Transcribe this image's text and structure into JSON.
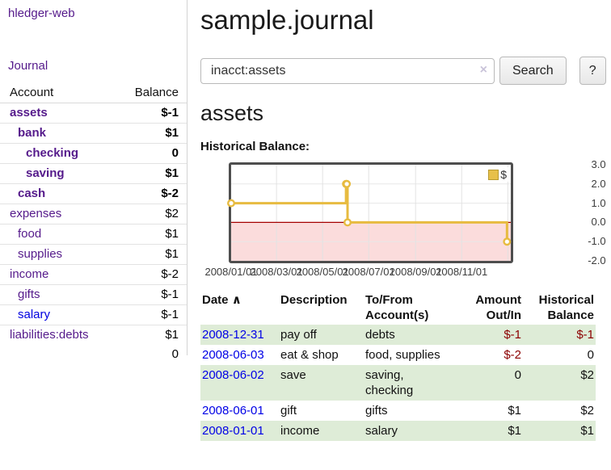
{
  "sidebar": {
    "brand": "hledger-web",
    "journal_link": "Journal",
    "accounts_table": {
      "headers": [
        "Account",
        "Balance"
      ],
      "rows": [
        {
          "name": "assets",
          "balance": "$-1",
          "level": 1,
          "bold": true,
          "balance_class": "neg",
          "link_class": ""
        },
        {
          "name": "bank",
          "balance": "$1",
          "level": 2,
          "bold": true,
          "balance_class": "",
          "link_class": ""
        },
        {
          "name": "checking",
          "balance": "0",
          "level": 3,
          "bold": true,
          "balance_class": "",
          "link_class": ""
        },
        {
          "name": "saving",
          "balance": "$1",
          "level": 3,
          "bold": true,
          "balance_class": "",
          "link_class": ""
        },
        {
          "name": "cash",
          "balance": "$-2",
          "level": 2,
          "bold": true,
          "balance_class": "neg",
          "link_class": ""
        },
        {
          "name": "expenses",
          "balance": "$2",
          "level": 1,
          "bold": false,
          "balance_class": "",
          "link_class": ""
        },
        {
          "name": "food",
          "balance": "$1",
          "level": 2,
          "bold": false,
          "balance_class": "",
          "link_class": ""
        },
        {
          "name": "supplies",
          "balance": "$1",
          "level": 2,
          "bold": false,
          "balance_class": "",
          "link_class": ""
        },
        {
          "name": "income",
          "balance": "$-2",
          "level": 1,
          "bold": false,
          "balance_class": "neg-soft",
          "link_class": ""
        },
        {
          "name": "gifts",
          "balance": "$-1",
          "level": 2,
          "bold": false,
          "balance_class": "neg-soft",
          "link_class": ""
        },
        {
          "name": "salary",
          "balance": "$-1",
          "level": 2,
          "bold": false,
          "balance_class": "neg-soft",
          "link_class": "blue"
        },
        {
          "name": "liabilities:debts",
          "balance": "$1",
          "level": 1,
          "bold": false,
          "balance_class": "",
          "link_class": ""
        }
      ],
      "total": "0"
    }
  },
  "header": {
    "title": "sample.journal"
  },
  "search": {
    "value": "inacct:assets",
    "clear_icon": "×",
    "button": "Search",
    "help_button": "?"
  },
  "main": {
    "account_title": "assets",
    "chart_label": "Historical Balance:"
  },
  "chart_data": {
    "type": "line",
    "title": "Historical Balance",
    "step": true,
    "legend": [
      {
        "label": "$",
        "color": "#e7bb40"
      }
    ],
    "legend_position": "top-right",
    "grid": true,
    "ylim": [
      -2,
      3
    ],
    "y_ticks": [
      "3.0",
      "2.0",
      "1.0",
      "0.0",
      "-1.0",
      "-2.0"
    ],
    "y_tick_values": [
      3,
      2,
      1,
      0,
      -1,
      -2
    ],
    "x_ticks": [
      "2008/01/01",
      "2008/03/01",
      "2008/05/01",
      "2008/07/01",
      "2008/09/01",
      "2008/11/01"
    ],
    "x_tick_dates": [
      "2008-01-01",
      "2008-03-01",
      "2008-05-01",
      "2008-07-01",
      "2008-09-01",
      "2008-11-01"
    ],
    "x_grid_dates": [
      "2008-03-01",
      "2008-05-01",
      "2008-07-01",
      "2008-09-01",
      "2008-11-01",
      "2009-01-01"
    ],
    "x_range_days": 370,
    "series": [
      {
        "name": "$",
        "points": [
          [
            "2008-01-01",
            1
          ],
          [
            "2008-06-01",
            2
          ],
          [
            "2008-06-02",
            2
          ],
          [
            "2008-06-03",
            0
          ],
          [
            "2008-12-31",
            -1
          ]
        ]
      }
    ],
    "colors": {
      "line": "#e7bb40",
      "marker_fill": "#ffffff",
      "negative_region": "#fbdcdc",
      "zero_line": "#a40000",
      "h_grid": "#e7e7e7",
      "v_grid": "#e2e2e2"
    }
  },
  "transactions": {
    "headers": {
      "date": "Date",
      "sort_icon": "∧",
      "description": "Description",
      "account_lines": [
        "To/From",
        "Account(s)"
      ],
      "amount_lines": [
        "Amount",
        "Out/In"
      ],
      "balance_lines": [
        "Historical",
        "Balance"
      ]
    },
    "rows": [
      {
        "date": "2008-12-31",
        "description": "pay off",
        "accounts": "debts",
        "amount": "$-1",
        "amount_class": "neg",
        "balance": "$-1",
        "balance_class": "neg"
      },
      {
        "date": "2008-06-03",
        "description": "eat & shop",
        "accounts": "food, supplies",
        "amount": "$-2",
        "amount_class": "neg",
        "balance": "0",
        "balance_class": ""
      },
      {
        "date": "2008-06-02",
        "description": "save",
        "accounts": "saving, checking",
        "amount": "0",
        "amount_class": "",
        "balance": "$2",
        "balance_class": ""
      },
      {
        "date": "2008-06-01",
        "description": "gift",
        "accounts": "gifts",
        "amount": "$1",
        "amount_class": "",
        "balance": "$2",
        "balance_class": ""
      },
      {
        "date": "2008-01-01",
        "description": "income",
        "accounts": "salary",
        "amount": "$1",
        "amount_class": "",
        "balance": "$1",
        "balance_class": ""
      }
    ]
  }
}
